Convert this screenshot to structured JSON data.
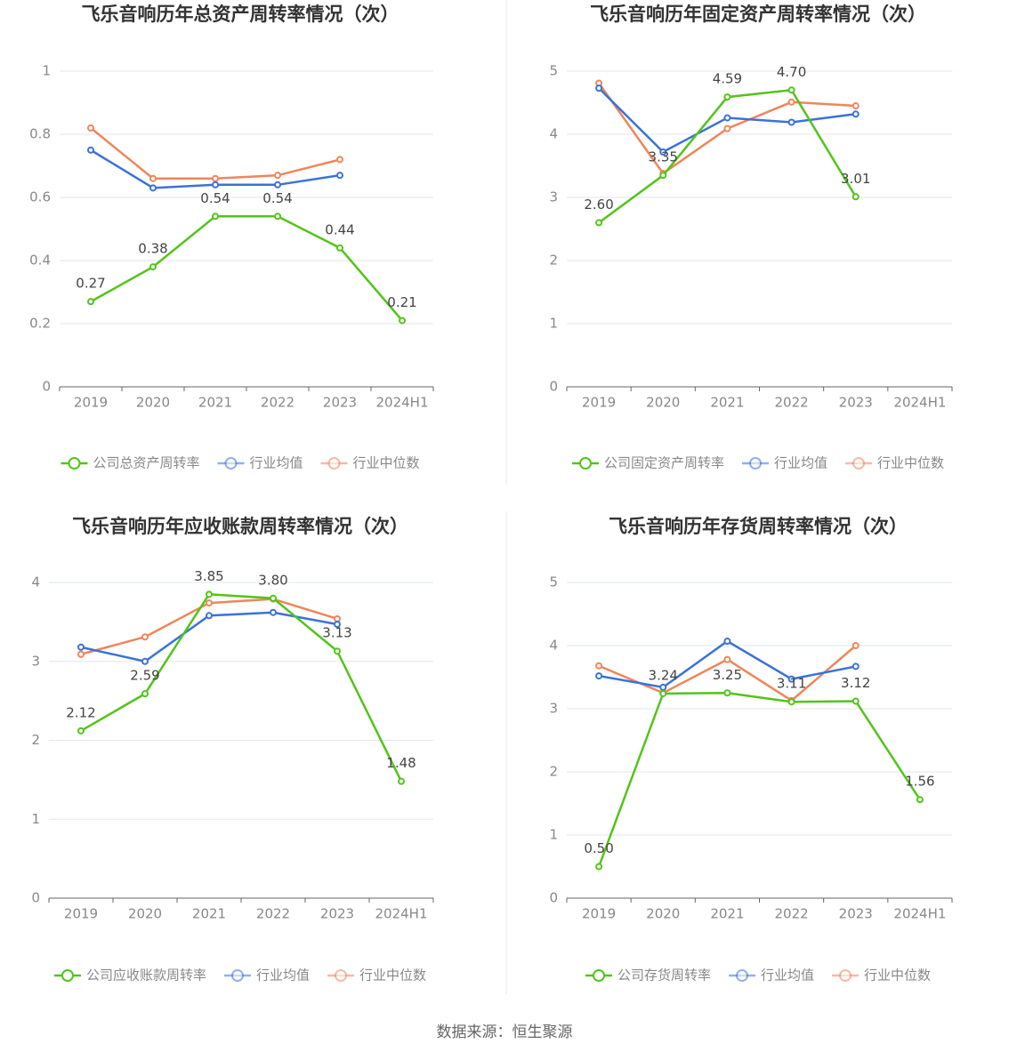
{
  "chart_data": [
    {
      "type": "line",
      "title": "飞乐音响历年总资产周转率情况（次）",
      "categories": [
        "2019",
        "2020",
        "2021",
        "2022",
        "2023",
        "2024H1"
      ],
      "ylim": [
        0,
        1
      ],
      "yticks": [
        0,
        0.2,
        0.4,
        0.6,
        0.8,
        1
      ],
      "grid": true,
      "series": [
        {
          "name": "公司总资产周转率",
          "color": "#52c41a",
          "data_labels": true,
          "values": [
            0.27,
            0.38,
            0.54,
            0.54,
            0.44,
            0.21
          ]
        },
        {
          "name": "行业均值",
          "color": "#3a72d8",
          "values": [
            0.75,
            0.63,
            0.64,
            0.64,
            0.67,
            null
          ]
        },
        {
          "name": "行业中位数",
          "color": "#f0855a",
          "values": [
            0.82,
            0.66,
            0.66,
            0.67,
            0.72,
            null
          ]
        }
      ]
    },
    {
      "type": "line",
      "title": "飞乐音响历年固定资产周转率情况（次）",
      "categories": [
        "2019",
        "2020",
        "2021",
        "2022",
        "2023",
        "2024H1"
      ],
      "ylim": [
        0,
        5
      ],
      "yticks": [
        0,
        1,
        2,
        3,
        4,
        5
      ],
      "grid": true,
      "series": [
        {
          "name": "公司固定资产周转率",
          "color": "#52c41a",
          "data_labels": true,
          "values": [
            2.6,
            3.35,
            4.59,
            4.7,
            3.01,
            null
          ],
          "value_labels": [
            "2.60",
            "3.35",
            "4.59",
            "4.70",
            "3.01",
            null
          ]
        },
        {
          "name": "行业均值",
          "color": "#3a72d8",
          "values": [
            4.73,
            3.72,
            4.26,
            4.19,
            4.32,
            null
          ]
        },
        {
          "name": "行业中位数",
          "color": "#f0855a",
          "values": [
            4.81,
            3.38,
            4.09,
            4.51,
            4.45,
            null
          ]
        }
      ]
    },
    {
      "type": "line",
      "title": "飞乐音响历年应收账款周转率情况（次）",
      "categories": [
        "2019",
        "2020",
        "2021",
        "2022",
        "2023",
        "2024H1"
      ],
      "ylim": [
        0,
        4
      ],
      "yticks": [
        0,
        1,
        2,
        3,
        4
      ],
      "grid": true,
      "series": [
        {
          "name": "公司应收账款周转率",
          "color": "#52c41a",
          "data_labels": true,
          "values": [
            2.12,
            2.59,
            3.85,
            3.8,
            3.13,
            1.48
          ],
          "value_labels": [
            "2.12",
            "2.59",
            "3.85",
            "3.80",
            "3.13",
            "1.48"
          ]
        },
        {
          "name": "行业均值",
          "color": "#3a72d8",
          "values": [
            3.18,
            3.0,
            3.58,
            3.62,
            3.47,
            null
          ]
        },
        {
          "name": "行业中位数",
          "color": "#f0855a",
          "values": [
            3.09,
            3.31,
            3.74,
            3.79,
            3.54,
            null
          ]
        }
      ]
    },
    {
      "type": "line",
      "title": "飞乐音响历年存货周转率情况（次）",
      "categories": [
        "2019",
        "2020",
        "2021",
        "2022",
        "2023",
        "2024H1"
      ],
      "ylim": [
        0,
        5
      ],
      "yticks": [
        0,
        1,
        2,
        3,
        4,
        5
      ],
      "grid": true,
      "series": [
        {
          "name": "公司存货周转率",
          "color": "#52c41a",
          "data_labels": true,
          "values": [
            0.5,
            3.24,
            3.25,
            3.11,
            3.12,
            1.56
          ],
          "value_labels": [
            "0.50",
            "3.24",
            "3.25",
            "3.11",
            "3.12",
            "1.56"
          ]
        },
        {
          "name": "行业均值",
          "color": "#3a72d8",
          "values": [
            3.52,
            3.34,
            4.07,
            3.47,
            3.67,
            null
          ]
        },
        {
          "name": "行业中位数",
          "color": "#f0855a",
          "values": [
            3.68,
            3.25,
            3.78,
            3.13,
            4.0,
            null
          ]
        }
      ]
    }
  ],
  "source": "数据来源：恒生聚源"
}
